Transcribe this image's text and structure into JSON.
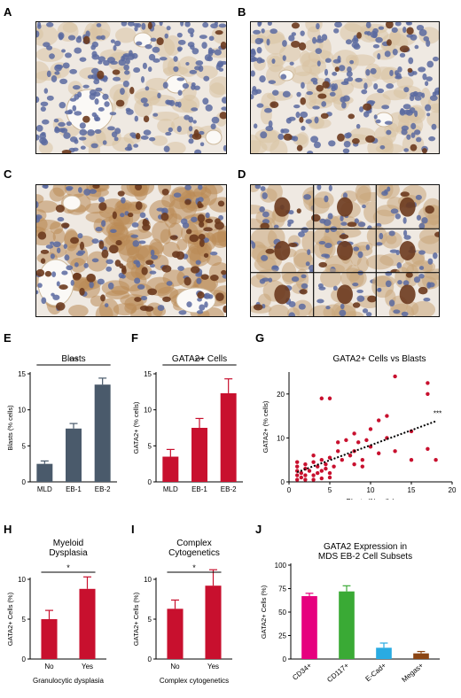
{
  "panels": {
    "A": "A",
    "B": "B",
    "C": "C",
    "D": "D",
    "E": "E",
    "F": "F",
    "G": "G",
    "H": "H",
    "I": "I",
    "J": "J"
  },
  "colors": {
    "slate": "#4a5a6b",
    "red": "#c8102e",
    "tissue_bg": "#efe9e2",
    "hematoxylin": "#5a6aa0",
    "dab": "#6b3a1e",
    "pink": "#e6007e",
    "green": "#3aaa35",
    "blue": "#29abe2",
    "brown": "#8b4513"
  },
  "chart_data": [
    {
      "id": "E",
      "type": "bar",
      "title": "Blasts",
      "ylabel": "Blasts (% cells)",
      "xlabel": "",
      "categories": [
        "MLD",
        "EB-1",
        "EB-2"
      ],
      "values": [
        2.5,
        7.4,
        13.5
      ],
      "errors": [
        0.4,
        0.7,
        0.9
      ],
      "ylim": [
        0,
        15
      ],
      "yticks": [
        0,
        5,
        10,
        15
      ],
      "significance": "***",
      "color": "#4a5a6b"
    },
    {
      "id": "F",
      "type": "bar",
      "title": "GATA2+ Cells",
      "ylabel": "GATA2+ (% cells)",
      "xlabel": "",
      "categories": [
        "MLD",
        "EB-1",
        "EB-2"
      ],
      "values": [
        3.5,
        7.5,
        12.3
      ],
      "errors": [
        1.0,
        1.3,
        2.0
      ],
      "ylim": [
        0,
        15
      ],
      "yticks": [
        0,
        5,
        10,
        15
      ],
      "significance": "***",
      "color": "#c8102e"
    },
    {
      "id": "G",
      "type": "scatter",
      "title": "GATA2+ Cells vs Blasts",
      "xlabel": "Blasts (% cells)",
      "ylabel": "GATA2+ (% cells)",
      "xlim": [
        0,
        20
      ],
      "ylim": [
        0,
        25
      ],
      "xticks": [
        0,
        5,
        10,
        15,
        20
      ],
      "yticks": [
        0,
        10,
        20
      ],
      "significance": "***",
      "color": "#c8102e",
      "trend": {
        "x": [
          1,
          18
        ],
        "y": [
          2.2,
          13.8
        ]
      },
      "points": [
        {
          "x": 1,
          "y": 0.5
        },
        {
          "x": 1,
          "y": 1.5
        },
        {
          "x": 1,
          "y": 2.5
        },
        {
          "x": 1,
          "y": 3.5
        },
        {
          "x": 1,
          "y": 4.5
        },
        {
          "x": 1.5,
          "y": 1
        },
        {
          "x": 1.5,
          "y": 2
        },
        {
          "x": 2,
          "y": 0.5
        },
        {
          "x": 2,
          "y": 1.5
        },
        {
          "x": 2,
          "y": 3
        },
        {
          "x": 2,
          "y": 4
        },
        {
          "x": 2.5,
          "y": 2.5
        },
        {
          "x": 3,
          "y": 0.5
        },
        {
          "x": 3,
          "y": 1.5
        },
        {
          "x": 3,
          "y": 4.5
        },
        {
          "x": 3,
          "y": 6
        },
        {
          "x": 3.5,
          "y": 2
        },
        {
          "x": 3.5,
          "y": 3.5
        },
        {
          "x": 4,
          "y": 0.8
        },
        {
          "x": 4,
          "y": 2.5
        },
        {
          "x": 4,
          "y": 5
        },
        {
          "x": 4,
          "y": 19
        },
        {
          "x": 4.5,
          "y": 3
        },
        {
          "x": 4.5,
          "y": 4
        },
        {
          "x": 5,
          "y": 1
        },
        {
          "x": 5,
          "y": 2
        },
        {
          "x": 5,
          "y": 5.5
        },
        {
          "x": 5,
          "y": 19
        },
        {
          "x": 5.5,
          "y": 3.5
        },
        {
          "x": 6,
          "y": 7
        },
        {
          "x": 6,
          "y": 9
        },
        {
          "x": 6.5,
          "y": 5
        },
        {
          "x": 7,
          "y": 9.5
        },
        {
          "x": 7.5,
          "y": 6
        },
        {
          "x": 8,
          "y": 4
        },
        {
          "x": 8,
          "y": 7
        },
        {
          "x": 8,
          "y": 11
        },
        {
          "x": 8.5,
          "y": 9
        },
        {
          "x": 9,
          "y": 3.5
        },
        {
          "x": 9,
          "y": 5
        },
        {
          "x": 9.5,
          "y": 9.5
        },
        {
          "x": 10,
          "y": 8
        },
        {
          "x": 10,
          "y": 12
        },
        {
          "x": 11,
          "y": 14
        },
        {
          "x": 11,
          "y": 6.5
        },
        {
          "x": 12,
          "y": 15
        },
        {
          "x": 12,
          "y": 10
        },
        {
          "x": 13,
          "y": 24
        },
        {
          "x": 13,
          "y": 7
        },
        {
          "x": 15,
          "y": 5
        },
        {
          "x": 15,
          "y": 11.5
        },
        {
          "x": 17,
          "y": 22.5
        },
        {
          "x": 17,
          "y": 20
        },
        {
          "x": 17,
          "y": 7.5
        },
        {
          "x": 18,
          "y": 5
        }
      ]
    },
    {
      "id": "H",
      "type": "bar",
      "title": "Myeloid\nDysplasia",
      "ylabel": "GATA2+ Cells (%)",
      "xlabel": "Granulocytic dysplasia",
      "categories": [
        "No",
        "Yes"
      ],
      "values": [
        5.0,
        8.8
      ],
      "errors": [
        1.1,
        1.5
      ],
      "ylim": [
        0,
        10
      ],
      "yticks": [
        0,
        5,
        10
      ],
      "significance": "*",
      "color": "#c8102e"
    },
    {
      "id": "I",
      "type": "bar",
      "title": "Complex\nCytogenetics",
      "ylabel": "GATA2+ Cells (%)",
      "xlabel": "Complex cytogenetics",
      "categories": [
        "No",
        "Yes"
      ],
      "values": [
        6.3,
        9.2
      ],
      "errors": [
        1.1,
        2.0
      ],
      "ylim": [
        0,
        10
      ],
      "yticks": [
        0,
        5,
        10
      ],
      "significance": "*",
      "color": "#c8102e"
    },
    {
      "id": "J",
      "type": "bar",
      "title": "GATA2 Expression in\nMDS EB-2 Cell Subsets",
      "ylabel": "GATA2+ Cells (%)",
      "xlabel": "",
      "categories": [
        "CD34+",
        "CD117+",
        "E-Cad+",
        "Megas+"
      ],
      "values": [
        67,
        72,
        12,
        6
      ],
      "errors": [
        3,
        6,
        5,
        2
      ],
      "ylim": [
        0,
        100
      ],
      "yticks": [
        0,
        25,
        50,
        75,
        100
      ],
      "colors": [
        "#e6007e",
        "#3aaa35",
        "#29abe2",
        "#8b4513"
      ]
    }
  ]
}
